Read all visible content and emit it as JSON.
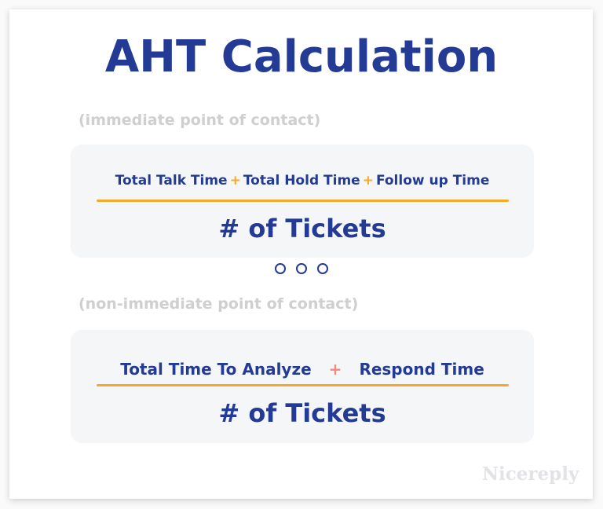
{
  "title": "AHT Calculation",
  "formulas": [
    {
      "label": "(immediate point of contact)",
      "numerator_terms": [
        "Total Talk Time",
        "Total Hold Time",
        "Follow up Time"
      ],
      "operator": "+",
      "denominator": "# of Tickets"
    },
    {
      "label": "(non-immediate point of contact)",
      "numerator_terms": [
        "Total Time To Analyze",
        "Respond Time"
      ],
      "operator": "+",
      "denominator": "# of Tickets"
    }
  ],
  "watermark": "Nicereply",
  "colors": {
    "primary": "#233b95",
    "accent": "#f9a825",
    "plus_alt": "#f08a7a",
    "label": "#cfcfcf"
  }
}
